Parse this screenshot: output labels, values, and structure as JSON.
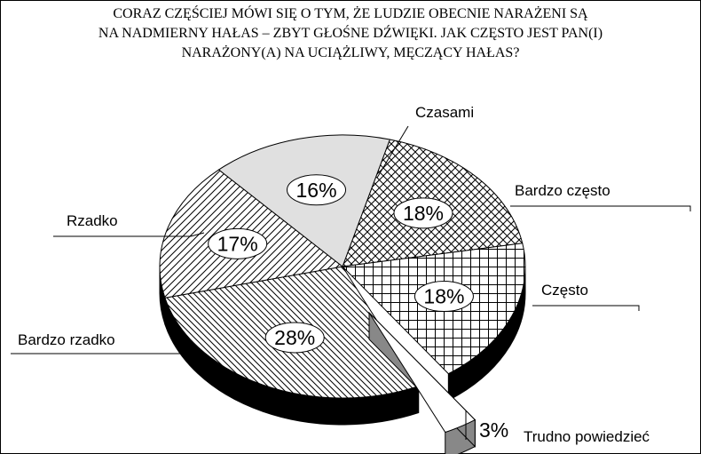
{
  "chart_data": {
    "type": "pie",
    "title": [
      "CORAZ CZĘŚCIEJ MÓWI SIĘ O TYM, ŻE LUDZIE OBECNIE NARAŻENI SĄ",
      "NA  NADMIERNY HAŁAS – ZBYT GŁOŚNE DŹWIĘKI. JAK CZĘSTO JEST PAN(I)",
      "NARAŻONY(A) NA UCIĄŻLIWY, MĘCZĄCY HAŁAS?"
    ],
    "categories": [
      "Bardzo często",
      "Często",
      "Trudno powiedzieć",
      "Bardzo rzadko",
      "Rzadko",
      "Czasami"
    ],
    "values": [
      18,
      18,
      3,
      28,
      17,
      16
    ],
    "value_labels": [
      "18%",
      "18%",
      "3%",
      "28%",
      "17%",
      "16%"
    ],
    "patterns": [
      "crosshatch",
      "grid",
      "none",
      "backslash",
      "slash",
      "solid"
    ],
    "colors": [
      "#ffffff",
      "#ffffff",
      "#ffffff",
      "#ffffff",
      "#ffffff",
      "#e0e0e0"
    ],
    "exploded": [
      2
    ]
  }
}
